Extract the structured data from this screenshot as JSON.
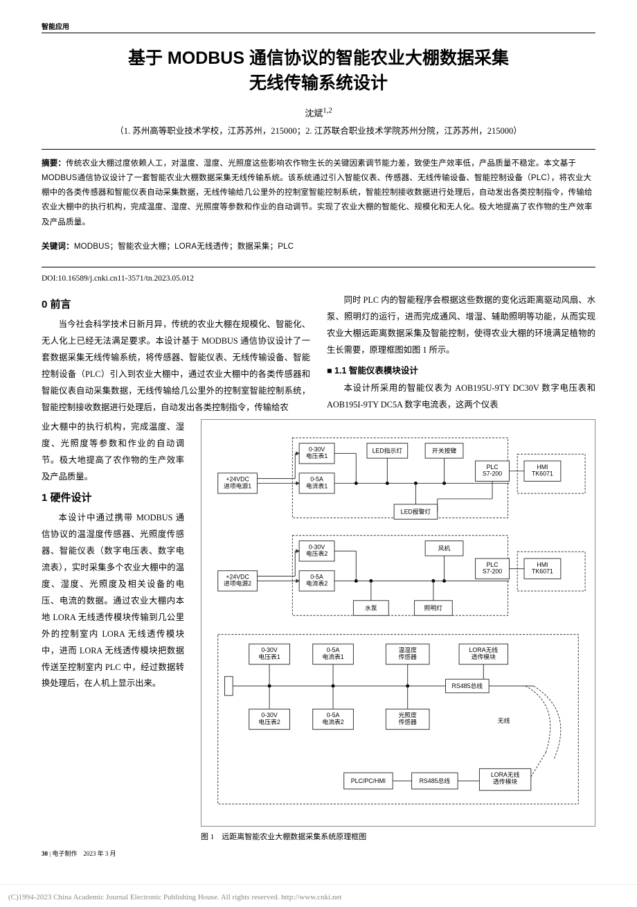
{
  "header": "智能应用",
  "title_line1": "基于 MODBUS 通信协议的智能农业大棚数据采集",
  "title_line2": "无线传输系统设计",
  "author": "沈斌",
  "author_sup": "1,2",
  "affiliation": "（1. 苏州高等职业技术学校，江苏苏州，215000；2. 江苏联合职业技术学院苏州分院，江苏苏州，215000）",
  "abstract_label": "摘要：",
  "abstract": "传统农业大棚过度依赖人工，对温度、湿度、光照度这些影响农作物生长的关键因素调节能力差，致使生产效率低，产品质量不稳定。本文基于MODBUS通信协议设计了一套智能农业大棚数据采集无线传输系统。该系统通过引入智能仪表、传感器、无线传输设备、智能控制设备（PLC），将农业大棚中的各类传感器和智能仪表自动采集数据，无线传输给几公里外的控制室智能控制系统，智能控制接收数据进行处理后，自动发出各类控制指令，传输给农业大棚中的执行机构，完成温度、湿度、光照度等参数和作业的自动调节。实现了农业大棚的智能化、规模化和无人化。极大地提高了农作物的生产效率及产品质量。",
  "keywords_label": "关键词：",
  "keywords": "MODBUS；智能农业大棚；LORA无线透传；数据采集；PLC",
  "doi": "DOI:10.16589/j.cnki.cn11-3571/tn.2023.05.012",
  "s0_title": "0 前言",
  "s0_p1": "当今社会科学技术日新月异，传统的农业大棚在规模化、智能化、无人化上已经无法满足要求。本设计基于 MODBUS 通信协议设计了一套数据采集无线传输系统，将传感器、智能仪表、无线传输设备、智能控制设备（PLC）引入到农业大棚中，通过农业大棚中的各类传感器和智能仪表自动采集数据，无线传输给几公里外的控制室智能控制系统，智能控制接收数据进行处理后，自动发出各类控制指令，传输给农",
  "s0_p2a": "业大棚中的执行机构，完成温度、湿度、光照度等参数和作业的自动调节。极大地提高了农作物的生产效率及产品质量。",
  "s1_title": "1 硬件设计",
  "s1_p1": "本设计中通过携带 MODBUS 通信协议的温湿度传感器、光照度传感器、智能仪表（数字电压表、数字电流表），实时采集多个农业大棚中的温度、湿度、光照度及相关设备的电压、电流的数据。通过农业大棚内本地 LORA 无线透传模块传输到几公里外的控制室内 LORA 无线透传模块中，进而 LORA 无线透传模块把数据传送至控制室内 PLC 中，经过数据转换处理后，在人机上显示出来。",
  "right_p1": "同时 PLC 内的智能程序会根据这些数据的变化远距离驱动风扇、水泵、照明灯的运行，进而完成通风、增湿、辅助照明等功能，从而实现农业大棚远距离数据采集及智能控制，使得农业大棚的环境满足植物的生长需要，原理框图如图 1 所示。",
  "s11_title": "1.1 智能仪表模块设计",
  "s11_p1": "本设计所采用的智能仪表为 AOB195U-9TY DC30V 数字电压表和 AOB195I-9TY DC5A 数字电流表，这两个仪表",
  "fig_caption": "图 1　远距离智能农业大棚数据采集系统原理框图",
  "page_num": "30",
  "page_src": "电子制作　2023 年 3 月",
  "footer_text": "(C)1994-2023 China Academic Journal Electronic Publishing House. All rights reserved.    http://www.cnki.net",
  "diagram": {
    "boxes": {
      "ps1": "+24VDC\n进项电源1",
      "v1": "0-30V\n电压表1",
      "a1": "0-5A\n电流表1",
      "led1": "LED指示灯",
      "key": "开关按键",
      "plc1": "PLC\nS7-200",
      "hmi1": "HMI\nTK6071",
      "warn": "LED报警灯",
      "ps2": "+24VDC\n进项电源2",
      "v2": "0-30V\n电压表2",
      "a2": "0-5A\n电流表2",
      "fan": "风机",
      "pump": "水泵",
      "light": "照明灯",
      "plc2": "PLC\nS7-200",
      "hmi2": "HMI\nTK6071",
      "v1b": "0-30V\n电压表1",
      "a1b": "0-5A\n电流表1",
      "th": "温湿度\n传感器",
      "lora1": "LORA无线\n透传模块",
      "v2b": "0-30V\n电压表2",
      "a2b": "0-5A\n电流表2",
      "lux": "光照度\n传感器",
      "bus1": "RS485总线",
      "bus2": "RS485总线",
      "wireless": "无线",
      "plcpc": "PLC/PC/HMI",
      "lora2": "LORA无线\n透传模块"
    },
    "colors": {
      "stroke": "#333333",
      "bg": "#ffffff",
      "text": "#000000"
    }
  }
}
